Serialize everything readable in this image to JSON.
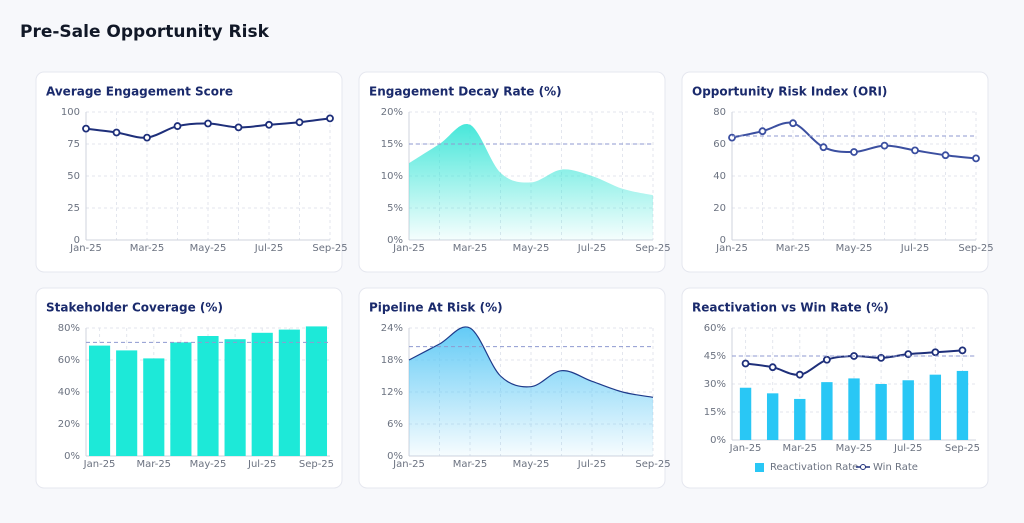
{
  "title": "Pre-Sale Opportunity Risk",
  "chart_data": [
    {
      "type": "line",
      "title": "Average Engagement Score",
      "categories": [
        "Jan-25",
        null,
        "Mar-25",
        null,
        "May-25",
        null,
        "Jul-25",
        null,
        "Sep-25"
      ],
      "values": [
        87,
        84,
        80,
        89,
        91,
        88,
        90,
        92,
        95
      ],
      "color": "#1e2f7a",
      "ylim": [
        0,
        100
      ],
      "yticks": [
        0,
        25,
        50,
        75,
        100
      ],
      "grid": true
    },
    {
      "type": "area",
      "title": "Engagement Decay Rate (%)",
      "categories": [
        "Jan-25",
        null,
        "Mar-25",
        null,
        "May-25",
        null,
        "Jul-25",
        null,
        "Sep-25"
      ],
      "values": [
        12,
        15,
        18,
        10.5,
        9,
        11,
        10,
        8,
        7
      ],
      "color": "#3ee6d8",
      "reference": 15,
      "ylim": [
        0,
        20
      ],
      "yticks": [
        {
          "value": 0,
          "label": "0%"
        },
        {
          "value": 5,
          "label": "5%"
        },
        {
          "value": 10,
          "label": "10%"
        },
        {
          "value": 15,
          "label": "15%"
        },
        {
          "value": 20,
          "label": "20%"
        }
      ],
      "grid": true
    },
    {
      "type": "line",
      "title": "Opportunity Risk Index (ORI)",
      "categories": [
        "Jan-25",
        null,
        "Mar-25",
        null,
        "May-25",
        null,
        "Jul-25",
        null,
        "Sep-25"
      ],
      "values": [
        64,
        68,
        73,
        58,
        55,
        59,
        56,
        53,
        51
      ],
      "color": "#3b4fa0",
      "reference": 65,
      "ylim": [
        0,
        80
      ],
      "yticks": [
        0,
        20,
        40,
        60,
        80
      ],
      "grid": true
    },
    {
      "type": "bar",
      "title": "Stakeholder Coverage (%)",
      "categories": [
        "Jan-25",
        null,
        "Mar-25",
        null,
        "May-25",
        null,
        "Jul-25",
        null,
        "Sep-25"
      ],
      "values": [
        69,
        66,
        61,
        71,
        75,
        73,
        77,
        79,
        81
      ],
      "color": "#1de9d8",
      "reference": 71,
      "ylim": [
        0,
        80
      ],
      "yticks": [
        {
          "value": 0,
          "label": "0%"
        },
        {
          "value": 20,
          "label": "20%"
        },
        {
          "value": 40,
          "label": "40%"
        },
        {
          "value": 60,
          "label": "60%"
        },
        {
          "value": 80,
          "label": "80%"
        }
      ],
      "grid": true
    },
    {
      "type": "area",
      "title": "Pipeline At Risk (%)",
      "categories": [
        "Jan-25",
        null,
        "Mar-25",
        null,
        "May-25",
        null,
        "Jul-25",
        null,
        "Sep-25"
      ],
      "values": [
        18,
        21,
        24,
        15,
        13,
        16,
        14,
        12,
        11
      ],
      "color": "#5bc8f5",
      "line_color": "#1e3a8a",
      "reference": 20.5,
      "ylim": [
        0,
        24
      ],
      "yticks": [
        {
          "value": 0,
          "label": "0%"
        },
        {
          "value": 6,
          "label": "6%"
        },
        {
          "value": 12,
          "label": "12%"
        },
        {
          "value": 18,
          "label": "18%"
        },
        {
          "value": 24,
          "label": "24%"
        }
      ],
      "grid": true
    },
    {
      "type": "combo",
      "title": "Reactivation vs Win Rate (%)",
      "categories": [
        "Jan-25",
        null,
        "Mar-25",
        null,
        "May-25",
        null,
        "Jul-25",
        null,
        "Sep-25"
      ],
      "series": [
        {
          "name": "Reactivation Rate",
          "type": "bar",
          "color": "#29c7f5",
          "values": [
            28,
            25,
            22,
            31,
            33,
            30,
            32,
            35,
            37
          ]
        },
        {
          "name": "Win Rate",
          "type": "line",
          "color": "#1e2f7a",
          "values": [
            41,
            39,
            35,
            43,
            45,
            44,
            46,
            47,
            48
          ]
        }
      ],
      "reference": 45,
      "legend": "bottom",
      "ylim": [
        0,
        60
      ],
      "yticks": [
        {
          "value": 0,
          "label": "0%"
        },
        {
          "value": 15,
          "label": "15%"
        },
        {
          "value": 30,
          "label": "30%"
        },
        {
          "value": 45,
          "label": "45%"
        },
        {
          "value": 60,
          "label": "60%"
        }
      ],
      "grid": true
    }
  ]
}
